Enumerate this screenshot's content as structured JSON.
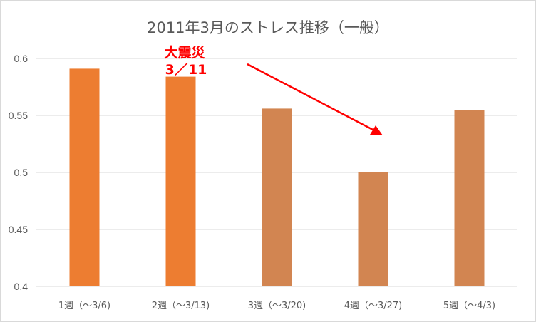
{
  "chart_data": {
    "type": "bar",
    "title": "2011年3月のストレス推移（一般）",
    "categories": [
      "1週（～3/6)",
      "2週（～3/13)",
      "3週（～3/20)",
      "4週（～3/27)",
      "5週（～4/3)"
    ],
    "values": [
      0.591,
      0.584,
      0.556,
      0.5,
      0.555
    ],
    "ylim": [
      0.4,
      0.6
    ],
    "yticks": [
      "0.4",
      "0.45",
      "0.5",
      "0.55",
      "0.6"
    ],
    "xlabel": "",
    "ylabel": "",
    "grid": true,
    "bar_colors": [
      "#ED7D31",
      "#ED7D31",
      "#D28551",
      "#D28551",
      "#D28551"
    ],
    "annotation": {
      "line1": "大震災",
      "line2": "3／11",
      "color": "#FF0000"
    }
  }
}
